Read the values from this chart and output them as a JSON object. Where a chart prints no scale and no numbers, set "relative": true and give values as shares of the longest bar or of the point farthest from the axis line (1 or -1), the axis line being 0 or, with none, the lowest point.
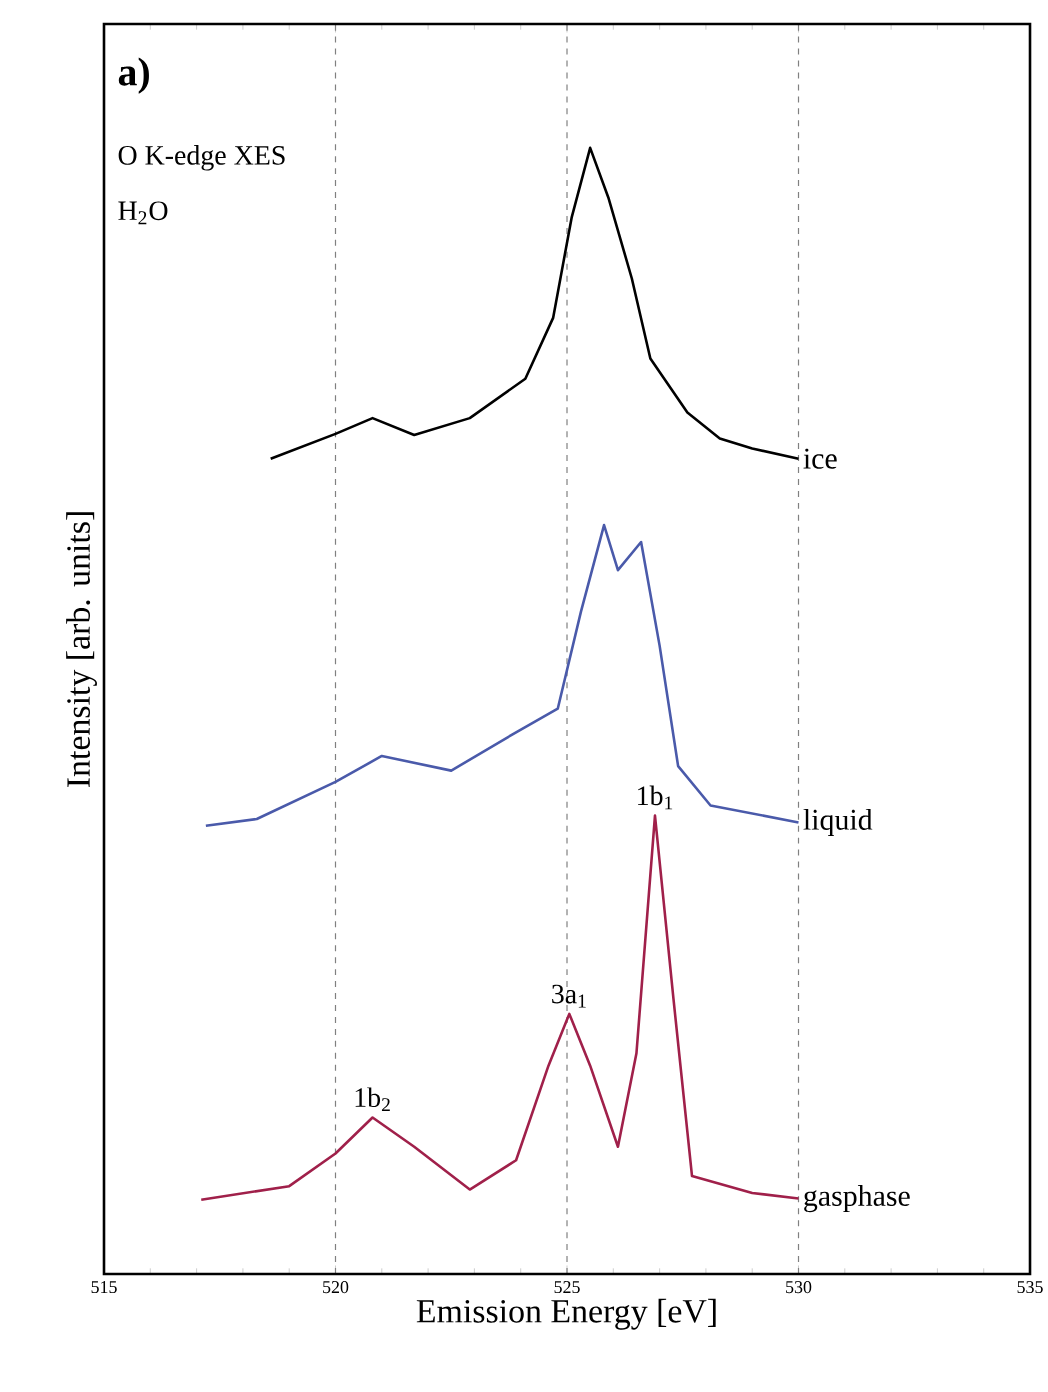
{
  "chart_data": {
    "type": "line",
    "relative": true,
    "xlabel": "Emission Energy [eV]",
    "ylabel": "Intensity [arb. units]",
    "xlim": [
      515,
      535
    ],
    "xticks": [
      515,
      520,
      525,
      530,
      535
    ],
    "grid": "x",
    "annotations": [
      "a)",
      "O K-edge XES",
      "H$_{2}$O",
      {
        "text": "1b$_{2}$",
        "x": 520.8,
        "y": 0.139
      },
      {
        "text": "3a$_{1}$",
        "x": 525.05,
        "y": 0.231
      },
      {
        "text": "1b$_{1}$",
        "x": 526.9,
        "y": 0.407
      }
    ],
    "series": [
      {
        "name": "ice",
        "color": "#000000",
        "x": [
          518.6,
          520.0,
          520.8,
          521.7,
          522.9,
          524.1,
          524.7,
          525.1,
          525.5,
          525.9,
          526.4,
          526.8,
          527.6,
          528.3,
          529.0,
          530.0
        ],
        "values": [
          0.724,
          0.746,
          0.76,
          0.745,
          0.76,
          0.795,
          0.849,
          0.938,
          1.0,
          0.955,
          0.884,
          0.813,
          0.765,
          0.742,
          0.733,
          0.724
        ]
      },
      {
        "name": "liquid",
        "color": "#4a5aaa",
        "x": [
          517.2,
          518.3,
          520.0,
          521.0,
          522.5,
          523.9,
          524.8,
          525.3,
          525.8,
          526.1,
          526.6,
          527.0,
          527.4,
          528.1,
          530.0
        ],
        "values": [
          0.398,
          0.404,
          0.437,
          0.46,
          0.447,
          0.481,
          0.502,
          0.588,
          0.665,
          0.625,
          0.65,
          0.558,
          0.451,
          0.416,
          0.401
        ]
      },
      {
        "name": "gasphase",
        "color": "#a0204a",
        "x": [
          517.1,
          519.0,
          520.0,
          520.8,
          521.7,
          522.9,
          523.9,
          524.6,
          525.05,
          525.5,
          526.1,
          526.5,
          526.9,
          527.3,
          527.7,
          529.0,
          530.0
        ],
        "values": [
          0.066,
          0.078,
          0.107,
          0.139,
          0.113,
          0.075,
          0.101,
          0.185,
          0.231,
          0.185,
          0.113,
          0.196,
          0.407,
          0.244,
          0.087,
          0.072,
          0.067
        ]
      }
    ]
  }
}
